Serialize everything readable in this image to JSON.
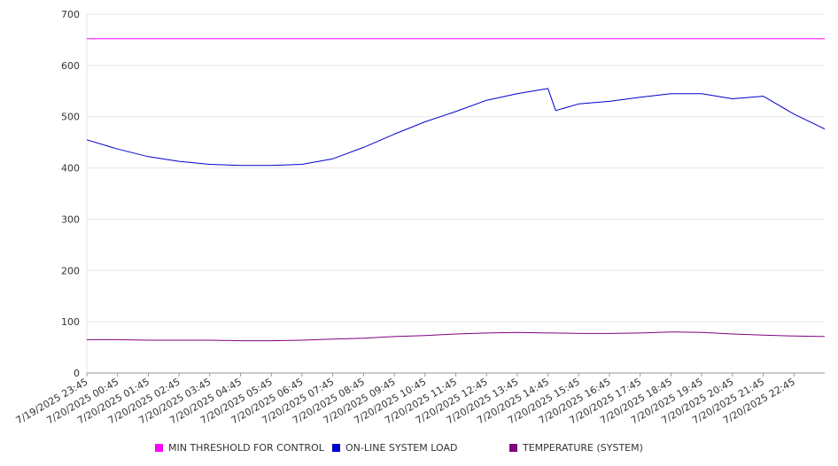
{
  "chart_data": {
    "type": "line",
    "title": "",
    "xlabel": "",
    "ylabel": "",
    "ylim": [
      0,
      700
    ],
    "yticks": [
      0,
      100,
      200,
      300,
      400,
      500,
      600,
      700
    ],
    "grid": true,
    "legend_position": "bottom",
    "x_tick_labels": [
      "7/19/2025 23:45",
      "7/20/2025 00:45",
      "7/20/2025 01:45",
      "7/20/2025 02:45",
      "7/20/2025 03:45",
      "7/20/2025 04:45",
      "7/20/2025 05:45",
      "7/20/2025 06:45",
      "7/20/2025 07:45",
      "7/20/2025 08:45",
      "7/20/2025 09:45",
      "7/20/2025 10:45",
      "7/20/2025 11:45",
      "7/20/2025 12:45",
      "7/20/2025 13:45",
      "7/20/2025 14:45",
      "7/20/2025 15:45",
      "7/20/2025 16:45",
      "7/20/2025 17:45",
      "7/20/2025 18:45",
      "7/20/2025 19:45",
      "7/20/2025 20:45",
      "7/20/2025 21:45",
      "7/20/2025 22:45"
    ],
    "x": [
      "7/19/2025 23:45",
      "7/20/2025 00:45",
      "7/20/2025 01:45",
      "7/20/2025 02:45",
      "7/20/2025 03:45",
      "7/20/2025 04:45",
      "7/20/2025 05:45",
      "7/20/2025 06:45",
      "7/20/2025 07:45",
      "7/20/2025 08:45",
      "7/20/2025 09:45",
      "7/20/2025 10:45",
      "7/20/2025 11:45",
      "7/20/2025 12:45",
      "7/20/2025 13:45",
      "7/20/2025 14:45",
      "7/20/2025 15:00",
      "7/20/2025 15:45",
      "7/20/2025 16:45",
      "7/20/2025 17:45",
      "7/20/2025 18:45",
      "7/20/2025 19:45",
      "7/20/2025 20:45",
      "7/20/2025 21:45",
      "7/20/2025 22:45",
      "7/20/2025 23:45"
    ],
    "series": [
      {
        "name": "MIN THRESHOLD FOR CONTROL",
        "color": "#ff00ff",
        "values": [
          652,
          652,
          652,
          652,
          652,
          652,
          652,
          652,
          652,
          652,
          652,
          652,
          652,
          652,
          652,
          652,
          652,
          652,
          652,
          652,
          652,
          652,
          652,
          652,
          652,
          652
        ]
      },
      {
        "name": "ON-LINE SYSTEM LOAD",
        "color": "#0000cc",
        "values": [
          455,
          437,
          422,
          413,
          407,
          405,
          405,
          407,
          418,
          440,
          466,
          490,
          510,
          532,
          545,
          555,
          512,
          525,
          530,
          538,
          545,
          545,
          535,
          540,
          505,
          476
        ]
      },
      {
        "name": "TEMPERATURE (SYSTEM)",
        "color": "#800080",
        "values": [
          65,
          65,
          64,
          64,
          64,
          63,
          63,
          64,
          66,
          68,
          71,
          73,
          76,
          78,
          79,
          78,
          78,
          77,
          77,
          78,
          80,
          79,
          76,
          74,
          72,
          71
        ]
      }
    ]
  }
}
